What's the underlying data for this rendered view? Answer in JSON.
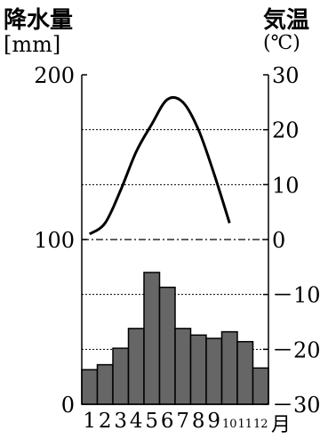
{
  "chart_data": {
    "type": "climate-graph",
    "left_axis": {
      "title": "降水量",
      "unit": "[mm]",
      "ylim": [
        0,
        200
      ],
      "tick_labels": [
        "0",
        "100",
        "200"
      ]
    },
    "right_axis": {
      "title": "気温",
      "unit": "(℃)",
      "ylim": [
        -30,
        30
      ],
      "tick_labels": [
        "30",
        "20",
        "10",
        "0",
        "－10",
        "－20",
        "－30"
      ]
    },
    "x_axis": {
      "categories": [
        "1",
        "2",
        "3",
        "4",
        "5",
        "6",
        "7",
        "8",
        "9",
        "10",
        "11",
        "12"
      ],
      "unit": "月"
    },
    "series": [
      {
        "kind": "bar",
        "axis": "left",
        "color": "#666666",
        "values": [
          21,
          24,
          34,
          46,
          80,
          71,
          46,
          42,
          40,
          44,
          38,
          22
        ]
      },
      {
        "kind": "line",
        "axis": "right",
        "color": "#000000",
        "values": [
          1,
          3,
          9,
          16,
          21,
          25.5,
          25,
          20,
          12,
          3
        ]
      }
    ],
    "line_x_positions": [
      0.5,
      1.5,
      2.5,
      3.5,
      4.5,
      5.5,
      6.5,
      7.5,
      8.5,
      9.5
    ],
    "gridlines_temperature": [
      20,
      10,
      -10,
      -20
    ],
    "zero_line_temperature": 0
  }
}
